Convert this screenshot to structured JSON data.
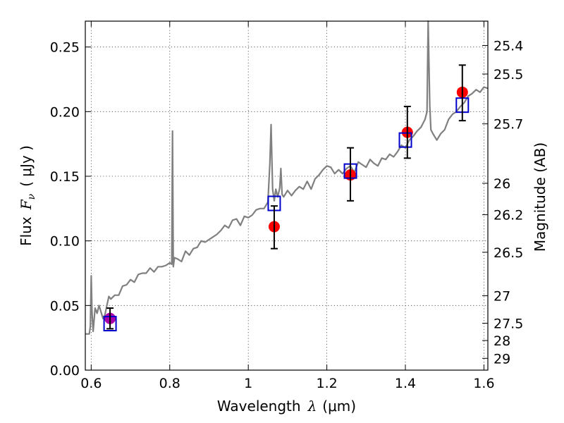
{
  "chart_data": {
    "type": "scatter",
    "xlabel": "Wavelength",
    "xlabel_symbol": "λ",
    "xlabel_unit": "(μm)",
    "ylabel": "Flux",
    "ylabel_symbol": "F",
    "ylabel_symbol_sub": "ν",
    "ylabel_unit": "( μJy )",
    "y2label": "Magnitude (AB)",
    "xlim": [
      0.585,
      1.61
    ],
    "ylim": [
      0.0,
      0.27
    ],
    "grid": true,
    "x_ticks": [
      {
        "value": 0.6,
        "label": "0.6"
      },
      {
        "value": 0.8,
        "label": "0.8"
      },
      {
        "value": 1.0,
        "label": "1"
      },
      {
        "value": 1.2,
        "label": "1.2"
      },
      {
        "value": 1.4,
        "label": "1.4"
      },
      {
        "value": 1.6,
        "label": "1.6"
      }
    ],
    "y_ticks": [
      {
        "value": 0.0,
        "label": "0.00"
      },
      {
        "value": 0.05,
        "label": "0.05"
      },
      {
        "value": 0.1,
        "label": "0.10"
      },
      {
        "value": 0.15,
        "label": "0.15"
      },
      {
        "value": 0.2,
        "label": "0.20"
      },
      {
        "value": 0.25,
        "label": "0.25"
      }
    ],
    "y2_ticks": [
      {
        "value": 25.4,
        "label": "25.4"
      },
      {
        "value": 25.5,
        "label": "25.5"
      },
      {
        "value": 25.7,
        "label": "25.7"
      },
      {
        "value": 26.0,
        "label": "26"
      },
      {
        "value": 26.2,
        "label": "26.2"
      },
      {
        "value": 26.5,
        "label": "26.5"
      },
      {
        "value": 27.0,
        "label": "27"
      },
      {
        "value": 27.5,
        "label": "27.5"
      },
      {
        "value": 28.0,
        "label": "28"
      },
      {
        "value": 29.0,
        "label": "29"
      }
    ],
    "series": [
      {
        "kind": "spectrum",
        "color": "#808080",
        "x": [
          0.585,
          0.595,
          0.598,
          0.6,
          0.602,
          0.605,
          0.61,
          0.615,
          0.62,
          0.625,
          0.63,
          0.635,
          0.64,
          0.645,
          0.65,
          0.66,
          0.67,
          0.68,
          0.69,
          0.7,
          0.71,
          0.72,
          0.73,
          0.74,
          0.75,
          0.76,
          0.77,
          0.78,
          0.79,
          0.8,
          0.805,
          0.807,
          0.809,
          0.812,
          0.82,
          0.83,
          0.84,
          0.85,
          0.86,
          0.87,
          0.88,
          0.89,
          0.9,
          0.91,
          0.92,
          0.93,
          0.94,
          0.95,
          0.96,
          0.97,
          0.98,
          0.99,
          1.0,
          1.01,
          1.02,
          1.03,
          1.04,
          1.05,
          1.055,
          1.058,
          1.062,
          1.066,
          1.07,
          1.075,
          1.08,
          1.083,
          1.086,
          1.09,
          1.1,
          1.11,
          1.12,
          1.13,
          1.14,
          1.15,
          1.16,
          1.17,
          1.18,
          1.19,
          1.2,
          1.21,
          1.22,
          1.23,
          1.24,
          1.25,
          1.26,
          1.27,
          1.28,
          1.29,
          1.3,
          1.31,
          1.32,
          1.33,
          1.34,
          1.35,
          1.36,
          1.37,
          1.38,
          1.39,
          1.4,
          1.41,
          1.42,
          1.43,
          1.44,
          1.45,
          1.455,
          1.458,
          1.462,
          1.465,
          1.47,
          1.48,
          1.49,
          1.5,
          1.51,
          1.52,
          1.53,
          1.54,
          1.55,
          1.56,
          1.57,
          1.58,
          1.59,
          1.6,
          1.61
        ],
        "y": [
          0.028,
          0.028,
          0.034,
          0.073,
          0.045,
          0.03,
          0.048,
          0.044,
          0.05,
          0.045,
          0.04,
          0.043,
          0.05,
          0.057,
          0.055,
          0.058,
          0.058,
          0.065,
          0.066,
          0.07,
          0.068,
          0.074,
          0.075,
          0.075,
          0.079,
          0.076,
          0.08,
          0.08,
          0.081,
          0.083,
          0.082,
          0.185,
          0.08,
          0.087,
          0.086,
          0.084,
          0.092,
          0.089,
          0.094,
          0.095,
          0.1,
          0.099,
          0.101,
          0.103,
          0.105,
          0.108,
          0.112,
          0.11,
          0.116,
          0.117,
          0.112,
          0.119,
          0.118,
          0.12,
          0.124,
          0.125,
          0.125,
          0.13,
          0.16,
          0.19,
          0.14,
          0.131,
          0.14,
          0.134,
          0.141,
          0.156,
          0.136,
          0.134,
          0.139,
          0.135,
          0.139,
          0.142,
          0.14,
          0.146,
          0.14,
          0.148,
          0.151,
          0.155,
          0.158,
          0.157,
          0.152,
          0.155,
          0.152,
          0.156,
          0.158,
          0.153,
          0.161,
          0.159,
          0.157,
          0.163,
          0.16,
          0.158,
          0.164,
          0.163,
          0.167,
          0.165,
          0.169,
          0.174,
          0.172,
          0.178,
          0.181,
          0.185,
          0.188,
          0.194,
          0.2,
          0.27,
          0.205,
          0.186,
          0.183,
          0.178,
          0.183,
          0.186,
          0.194,
          0.198,
          0.2,
          0.204,
          0.207,
          0.212,
          0.214,
          0.217,
          0.215,
          0.219,
          0.218
        ]
      },
      {
        "kind": "observed",
        "color": "#ff0000",
        "x": [
          1.066,
          1.26,
          1.405,
          1.545
        ],
        "y": [
          0.111,
          0.151,
          0.184,
          0.215
        ],
        "err_low": [
          0.094,
          0.131,
          0.164,
          0.193
        ],
        "err_high": [
          0.127,
          0.172,
          0.204,
          0.236
        ]
      },
      {
        "kind": "observed-optical",
        "color": "#aa00aa",
        "x": [
          0.648
        ],
        "y": [
          0.04
        ],
        "err_low": [
          0.032
        ],
        "err_high": [
          0.048
        ]
      },
      {
        "kind": "model-photometry",
        "color": "#0000cc",
        "x": [
          0.648,
          1.066,
          1.26,
          1.4,
          1.545
        ],
        "y": [
          0.036,
          0.129,
          0.154,
          0.178,
          0.205
        ]
      }
    ]
  }
}
